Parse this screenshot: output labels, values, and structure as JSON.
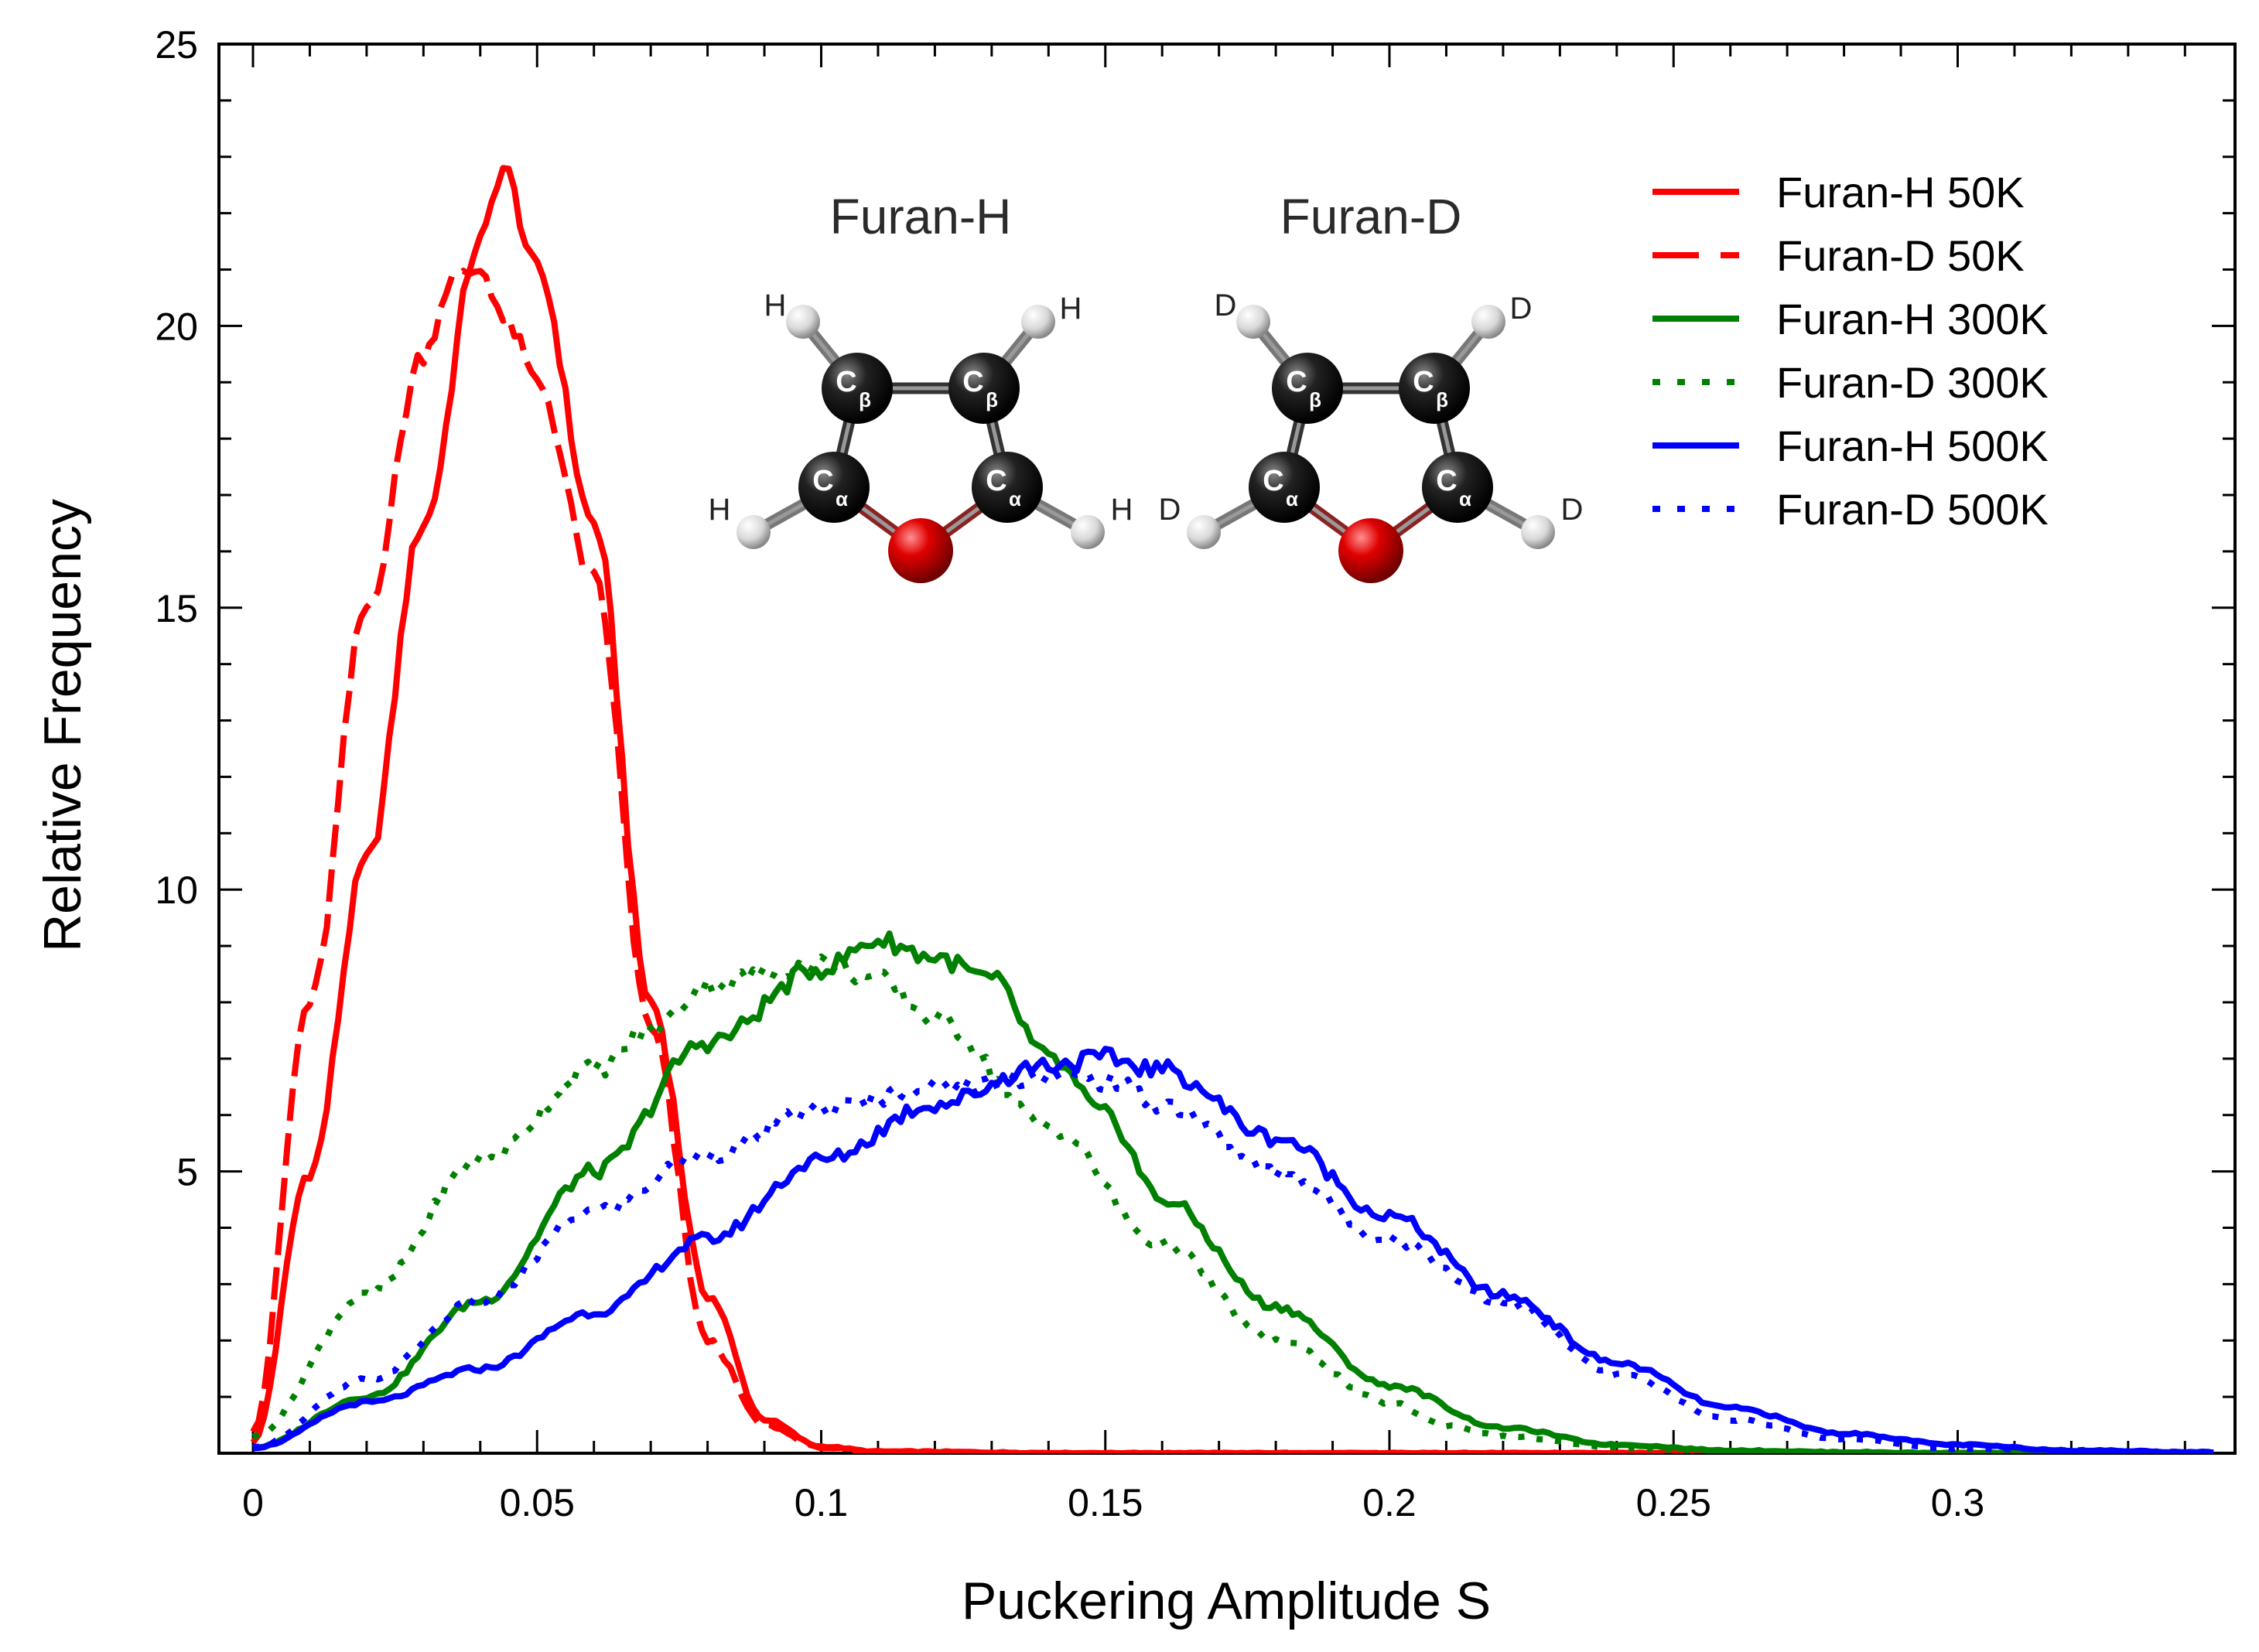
{
  "chart_data": {
    "type": "line",
    "xlabel": "Puckering Amplitude S",
    "ylabel": "Relative Frequency",
    "xlim": [
      -0.005,
      0.348
    ],
    "ylim": [
      0,
      25
    ],
    "grid": false,
    "legend_position": "top-right",
    "x_ticks": [
      0,
      0.05,
      0.1,
      0.15,
      0.2,
      0.25,
      0.3
    ],
    "x_tick_labels": [
      "0",
      "0.05",
      "0.1",
      "0.15",
      "0.2",
      "0.25",
      "0.3"
    ],
    "y_ticks": [
      5,
      10,
      15,
      20,
      25
    ],
    "y_tick_labels": [
      "5",
      "10",
      "15",
      "20",
      "25"
    ],
    "series": [
      {
        "name": "Furan-H 50K",
        "color": "#ff0000",
        "dash": "solid",
        "x": [
          0,
          0.01,
          0.02,
          0.03,
          0.04,
          0.044,
          0.05,
          0.06,
          0.07,
          0.08,
          0.09,
          0.1,
          0.11,
          0.15,
          0.2,
          0.25,
          0.3,
          0.345
        ],
        "y": [
          0.2,
          5.0,
          10.5,
          16.5,
          21.5,
          22.8,
          21.0,
          16.5,
          8.0,
          2.8,
          0.6,
          0.12,
          0.03,
          0,
          0,
          0,
          0,
          0
        ]
      },
      {
        "name": "Furan-D 50K",
        "color": "#ff0000",
        "dash": "dashed",
        "x": [
          0,
          0.01,
          0.02,
          0.03,
          0.035,
          0.04,
          0.045,
          0.05,
          0.06,
          0.07,
          0.08,
          0.09,
          0.1,
          0.11,
          0.15,
          0.2,
          0.25,
          0.3,
          0.345
        ],
        "y": [
          0.4,
          8.0,
          15.0,
          19.5,
          20.8,
          21.0,
          20.0,
          19.0,
          15.5,
          7.5,
          2.0,
          0.5,
          0.1,
          0.02,
          0,
          0,
          0,
          0,
          0
        ]
      },
      {
        "name": "Furan-H 300K",
        "color": "#008000",
        "dash": "solid",
        "x": [
          0,
          0.02,
          0.04,
          0.06,
          0.08,
          0.1,
          0.11,
          0.12,
          0.13,
          0.14,
          0.15,
          0.16,
          0.18,
          0.2,
          0.22,
          0.24,
          0.26,
          0.28,
          0.3,
          0.345
        ],
        "y": [
          0.1,
          1.0,
          2.7,
          5.0,
          7.3,
          8.6,
          9.1,
          8.8,
          8.4,
          7.0,
          6.0,
          4.5,
          2.6,
          1.2,
          0.45,
          0.15,
          0.05,
          0.02,
          0,
          0
        ]
      },
      {
        "name": "Furan-D 300K",
        "color": "#008000",
        "dash": "dotted",
        "x": [
          0,
          0.02,
          0.04,
          0.06,
          0.07,
          0.08,
          0.09,
          0.1,
          0.11,
          0.12,
          0.14,
          0.16,
          0.18,
          0.2,
          0.21,
          0.22,
          0.24,
          0.26,
          0.3,
          0.345
        ],
        "y": [
          0.3,
          2.8,
          5.2,
          6.8,
          7.5,
          8.3,
          8.5,
          8.7,
          8.4,
          7.7,
          5.8,
          3.7,
          2.0,
          0.9,
          0.5,
          0.3,
          0.1,
          0.03,
          0,
          0
        ]
      },
      {
        "name": "Furan-H 500K",
        "color": "#0000ff",
        "dash": "solid",
        "x": [
          0,
          0.02,
          0.04,
          0.06,
          0.08,
          0.1,
          0.12,
          0.14,
          0.15,
          0.16,
          0.18,
          0.2,
          0.22,
          0.24,
          0.26,
          0.28,
          0.3,
          0.32,
          0.345
        ],
        "y": [
          0.1,
          0.9,
          1.5,
          2.5,
          3.8,
          5.2,
          6.2,
          6.9,
          7.0,
          6.8,
          5.6,
          4.2,
          2.8,
          1.6,
          0.8,
          0.35,
          0.15,
          0.05,
          0.02
        ]
      },
      {
        "name": "Furan-D 500K",
        "color": "#0000ff",
        "dash": "dotted",
        "x": [
          0,
          0.02,
          0.04,
          0.06,
          0.08,
          0.1,
          0.12,
          0.14,
          0.15,
          0.16,
          0.18,
          0.2,
          0.22,
          0.24,
          0.26,
          0.28,
          0.3,
          0.345
        ],
        "y": [
          0.1,
          1.3,
          2.7,
          4.3,
          5.3,
          6.1,
          6.5,
          6.7,
          6.6,
          6.2,
          5.0,
          3.8,
          2.7,
          1.4,
          0.6,
          0.25,
          0.08,
          0.02
        ]
      }
    ],
    "inset": {
      "molecules": [
        {
          "title": "Furan-H",
          "isotope_label": "H"
        },
        {
          "title": "Furan-D",
          "isotope_label": "D"
        }
      ],
      "atom_labels": {
        "c": "C",
        "beta": "β",
        "alpha": "α"
      },
      "colors": {
        "carbon": "#111111",
        "oxygen": "#d40000",
        "hydrogen": "#e8e8e8"
      }
    }
  }
}
